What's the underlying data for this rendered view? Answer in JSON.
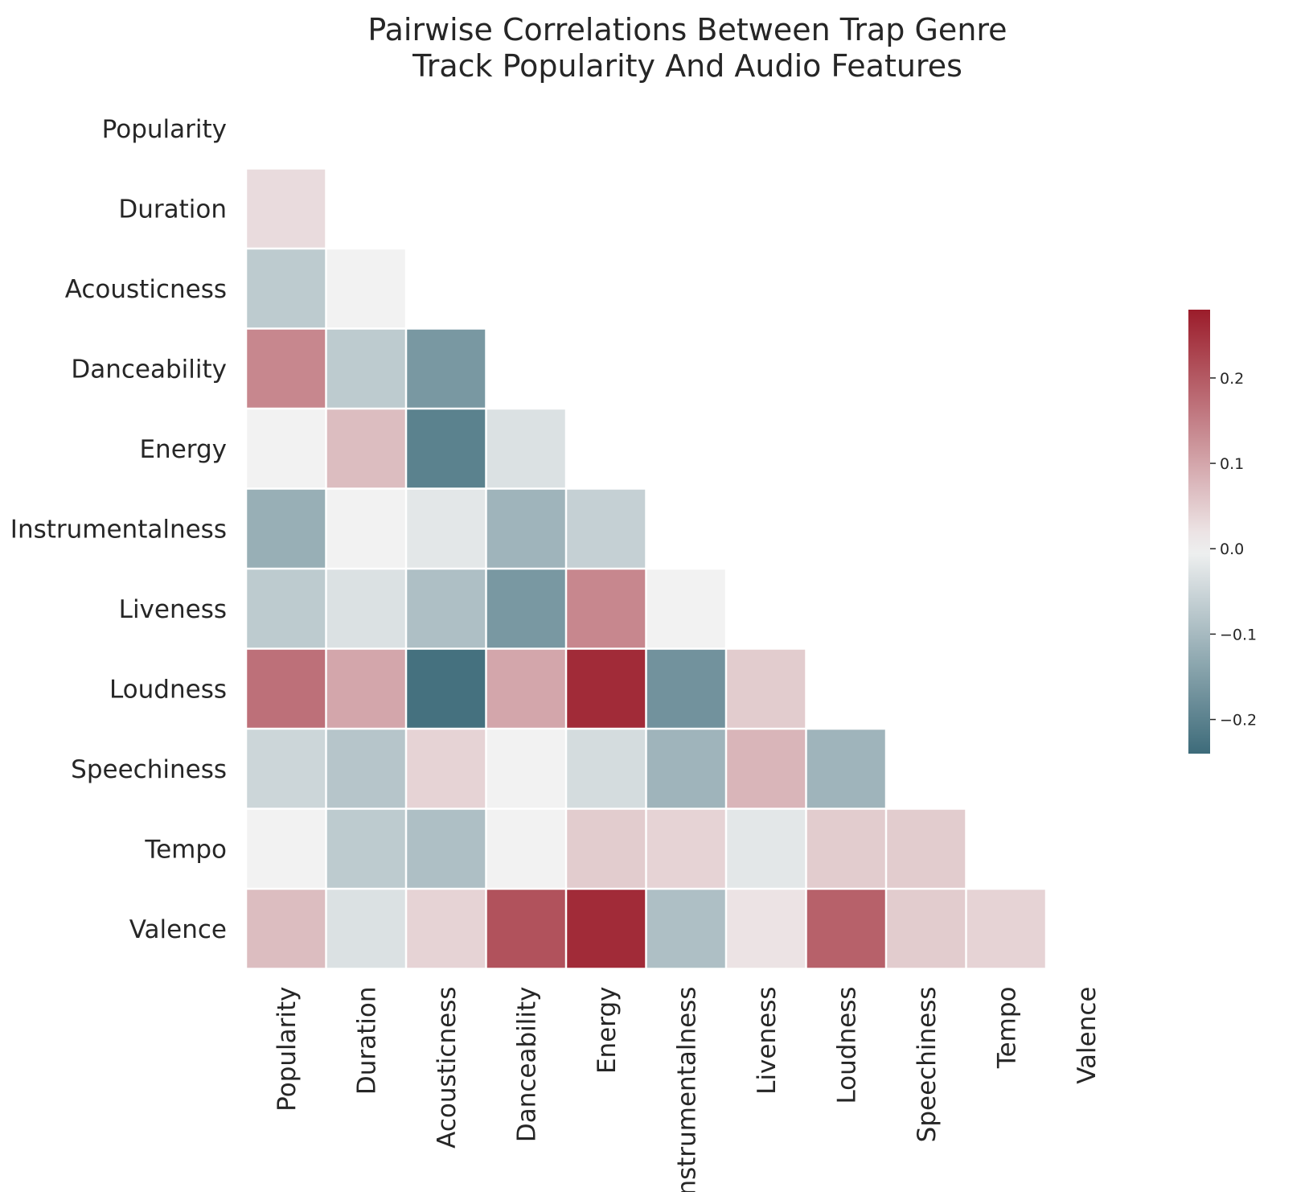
{
  "chart_data": {
    "type": "heatmap",
    "title_lines": [
      "Pairwise Correlations Between Trap Genre",
      "Track Popularity And Audio Features"
    ],
    "labels": [
      "Popularity",
      "Duration",
      "Acousticness",
      "Danceability",
      "Energy",
      "Instrumentalness",
      "Liveness",
      "Loudness",
      "Speechiness",
      "Tempo",
      "Valence"
    ],
    "mask": "upper-triangle",
    "matrix": [
      [
        null,
        null,
        null,
        null,
        null,
        null,
        null,
        null,
        null,
        null,
        null
      ],
      [
        0.03,
        null,
        null,
        null,
        null,
        null,
        null,
        null,
        null,
        null,
        null
      ],
      [
        -0.07,
        0.0,
        null,
        null,
        null,
        null,
        null,
        null,
        null,
        null,
        null
      ],
      [
        0.14,
        -0.07,
        -0.16,
        null,
        null,
        null,
        null,
        null,
        null,
        null,
        null
      ],
      [
        0.0,
        0.07,
        -0.2,
        -0.03,
        null,
        null,
        null,
        null,
        null,
        null,
        null
      ],
      [
        -0.12,
        0.0,
        -0.02,
        -0.11,
        -0.06,
        null,
        null,
        null,
        null,
        null,
        null
      ],
      [
        -0.07,
        -0.03,
        -0.09,
        -0.16,
        0.14,
        0.0,
        null,
        null,
        null,
        null,
        null
      ],
      [
        0.17,
        0.1,
        -0.23,
        0.1,
        0.26,
        -0.17,
        0.05,
        null,
        null,
        null,
        null
      ],
      [
        -0.05,
        -0.08,
        0.04,
        0.0,
        -0.04,
        -0.11,
        0.08,
        -0.11,
        null,
        null,
        null
      ],
      [
        0.0,
        -0.07,
        -0.09,
        0.0,
        0.05,
        0.04,
        -0.02,
        0.05,
        0.05,
        null,
        null
      ],
      [
        0.07,
        -0.03,
        0.04,
        0.21,
        0.26,
        -0.09,
        0.02,
        0.19,
        0.05,
        0.04,
        null
      ]
    ],
    "colormap": {
      "negative_end": "#3d6b7a",
      "center": "#f2f2f2",
      "positive_end": "#9b1c2a"
    },
    "vmin": -0.24,
    "vmax": 0.28,
    "colorbar": {
      "ticks": [
        -0.2,
        -0.1,
        0.0,
        0.1,
        0.2
      ],
      "tick_labels": [
        "−0.2",
        "−0.1",
        "0.0",
        "0.1",
        "0.2"
      ]
    },
    "cell_border_color": "#ffffff"
  }
}
